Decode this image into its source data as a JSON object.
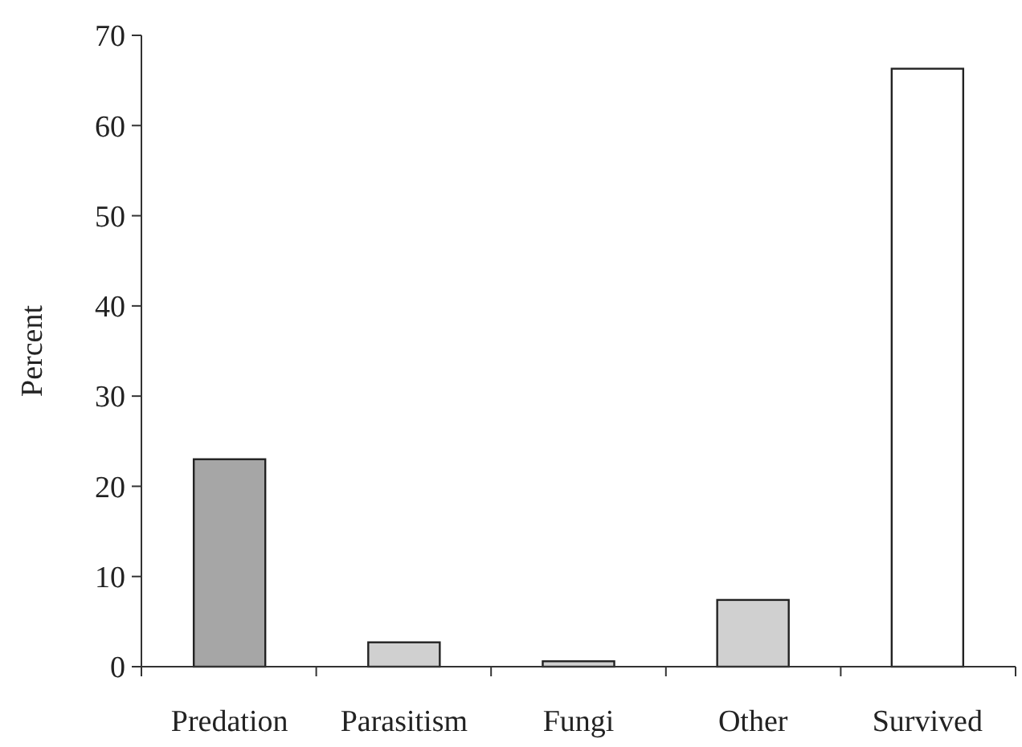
{
  "chart_data": {
    "type": "bar",
    "ylabel": "Percent",
    "categories": [
      "Predation",
      "Parasitism",
      "Fungi",
      "Other",
      "Survived"
    ],
    "values": [
      23,
      2.7,
      0.6,
      7.4,
      66.3
    ],
    "colors": [
      "#a6a6a6",
      "#d0d0d0",
      "#d0d0d0",
      "#d0d0d0",
      "#ffffff"
    ],
    "ylim": [
      0,
      70
    ],
    "yticks": [
      0,
      10,
      20,
      30,
      40,
      50,
      60,
      70
    ],
    "grid": false
  }
}
